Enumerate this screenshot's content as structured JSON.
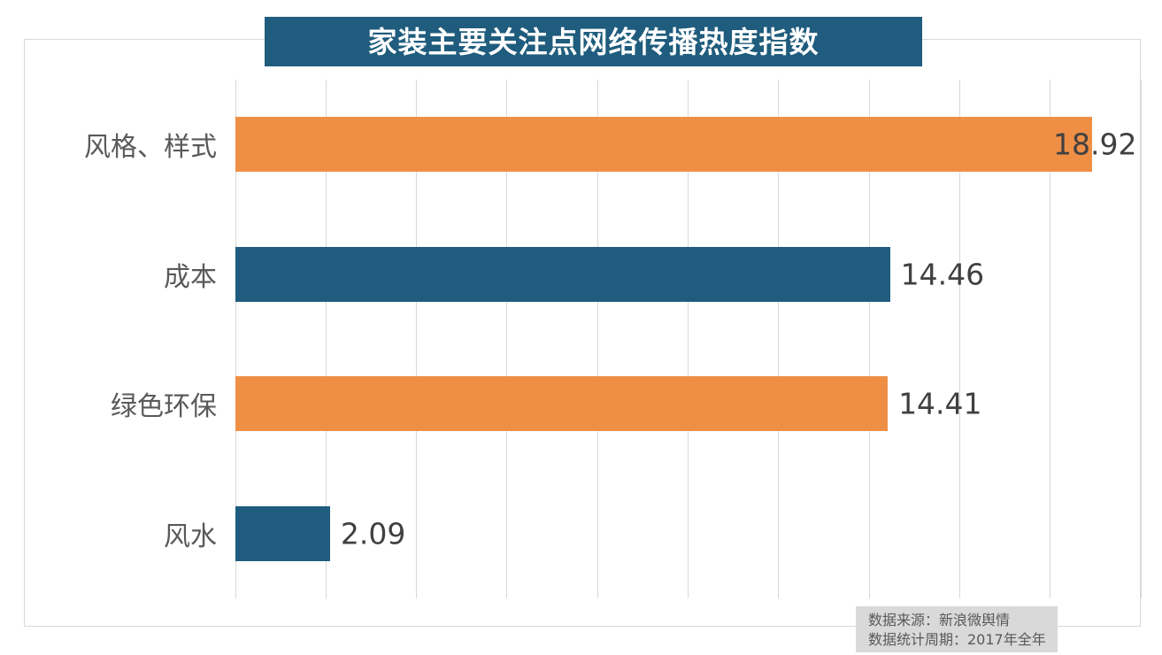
{
  "title": "家装主要关注点网络传播热度指数",
  "source_note": {
    "line1": "数据来源：新浪微舆情",
    "line2": "数据统计周期：2017年全年"
  },
  "colors": {
    "title_bg": "#1F5C7D",
    "title_text": "#FFFFFF",
    "orange_bar": "#EF8F46",
    "teal_bar": "#1F5C7D",
    "gridline": "#D9D9D9",
    "frame_border": "#D9D9D9",
    "category_text": "#595959",
    "value_text": "#404040",
    "source_bg": "#D9D9D9",
    "source_text": "#595959"
  },
  "chart_data": {
    "type": "bar",
    "orientation": "horizontal",
    "title": "家装主要关注点网络传播热度指数",
    "categories": [
      "风格、样式",
      "成本",
      "绿色环保",
      "风水"
    ],
    "values": [
      18.92,
      14.46,
      14.41,
      2.09
    ],
    "value_labels": [
      "18.92",
      "14.46",
      "14.41",
      "2.09"
    ],
    "bar_colors": [
      "#EF8F46",
      "#1F5C7D",
      "#EF8F46",
      "#1F5C7D"
    ],
    "xlabel": "",
    "ylabel": "",
    "xlim": [
      0,
      20
    ],
    "grid_step": 2,
    "grid": true,
    "legend": false,
    "tick_labels_visible": false
  }
}
